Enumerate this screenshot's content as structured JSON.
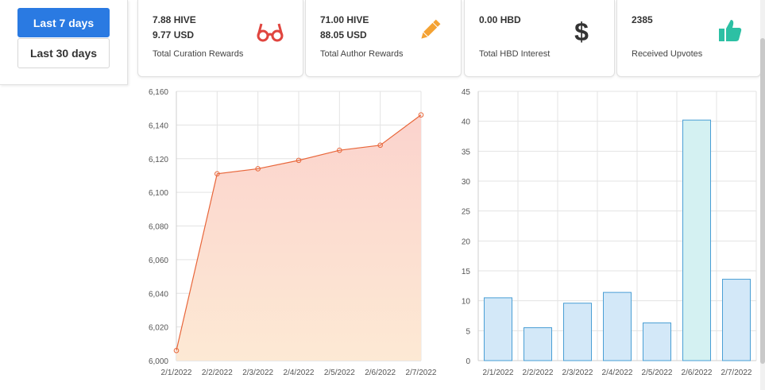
{
  "range": {
    "last7_label": "Last 7 days",
    "last30_label": "Last 30 days"
  },
  "cards": [
    {
      "line1": "7.88 HIVE",
      "line2": "9.77 USD",
      "label": "Total Curation Rewards",
      "icon": "glasses-icon",
      "color": "#e0453f"
    },
    {
      "line1": "71.00 HIVE",
      "line2": "88.05 USD",
      "label": "Total Author Rewards",
      "icon": "pencil-icon",
      "color": "#f4a233"
    },
    {
      "line1": "0.00 HBD",
      "line2": "",
      "label": "Total HBD Interest",
      "icon": "dollar-icon",
      "color": "#333333"
    },
    {
      "line1": "2385",
      "line2": "",
      "label": "Received Upvotes",
      "icon": "thumbs-up-icon",
      "color": "#2cc0a4"
    }
  ],
  "chart_data": [
    {
      "type": "area",
      "x": [
        "2/1/2022",
        "2/2/2022",
        "2/3/2022",
        "2/4/2022",
        "2/5/2022",
        "2/6/2022",
        "2/7/2022"
      ],
      "values": [
        6006,
        6111,
        6114,
        6119,
        6125,
        6128,
        6146
      ],
      "ylim": [
        6000,
        6160
      ],
      "yticks": [
        "6,000",
        "6,020",
        "6,040",
        "6,060",
        "6,080",
        "6,100",
        "6,120",
        "6,140",
        "6,160"
      ],
      "grid": true,
      "line_color": "#e8663a",
      "fill_top": "#fbd3cd",
      "fill_bottom": "#fde9d4"
    },
    {
      "type": "bar",
      "categories": [
        "2/1/2022",
        "2/2/2022",
        "2/3/2022",
        "2/4/2022",
        "2/5/2022",
        "2/6/2022",
        "2/7/2022"
      ],
      "values": [
        10.5,
        5.5,
        9.6,
        11.4,
        6.3,
        40.2,
        13.6
      ],
      "ylim": [
        0,
        45
      ],
      "yticks": [
        "0",
        "5",
        "10",
        "15",
        "20",
        "25",
        "30",
        "35",
        "40",
        "45"
      ],
      "grid": true,
      "bar_color": "#d3e8f8",
      "bar_border": "#4a9fd5",
      "highlight_color": "#d4f1f2",
      "highlight_index": 5
    }
  ]
}
